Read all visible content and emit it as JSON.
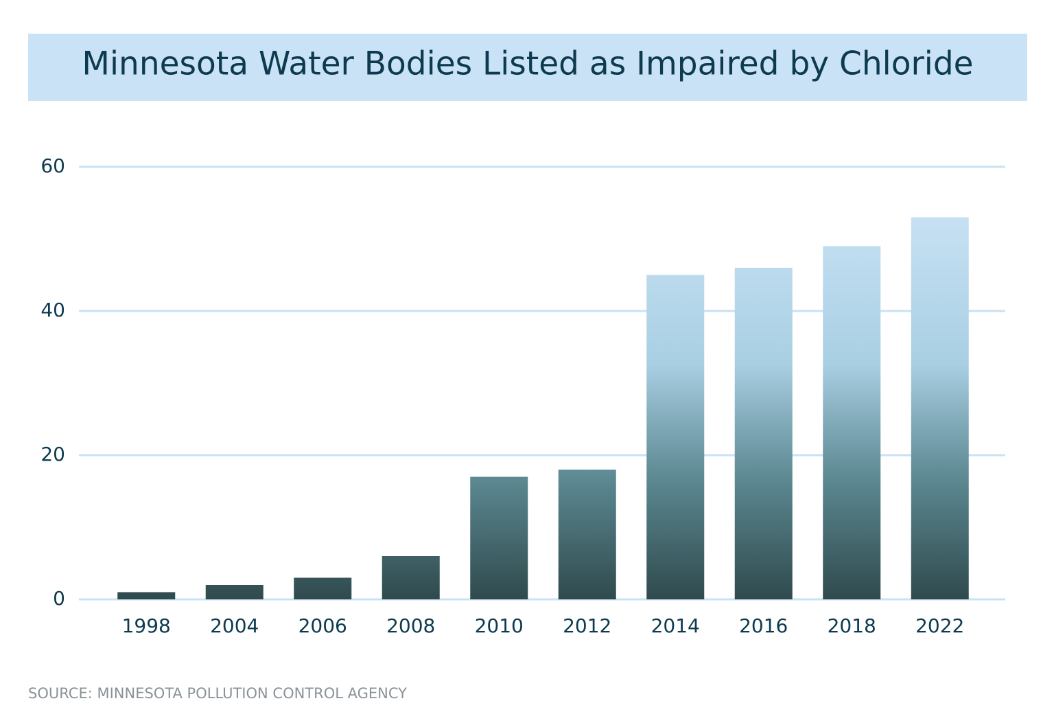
{
  "chart_data": {
    "type": "bar",
    "title": "Minnesota Water Bodies Listed as Impaired by Chloride",
    "categories": [
      "1998",
      "2004",
      "2006",
      "2008",
      "2010",
      "2012",
      "2014",
      "2016",
      "2018",
      "2022"
    ],
    "values": [
      1,
      2,
      3,
      6,
      17,
      18,
      45,
      46,
      49,
      53
    ],
    "color": "#2f4a4d",
    "ylim": [
      0,
      60
    ],
    "yticks": [
      0,
      20,
      40,
      60
    ],
    "grid": true,
    "source": "SOURCE: MINNESOTA POLLUTION CONTROL AGENCY"
  }
}
